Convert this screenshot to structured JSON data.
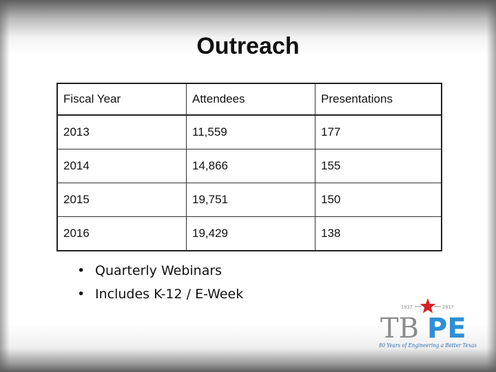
{
  "slide": {
    "title": "Outreach"
  },
  "table": {
    "headers": [
      "Fiscal Year",
      "Attendees",
      "Presentations"
    ],
    "rows": [
      [
        "2013",
        "11,559",
        "177"
      ],
      [
        "2014",
        "14,866",
        "155"
      ],
      [
        "2015",
        "19,751",
        "150"
      ],
      [
        "2016",
        "19,429",
        "138"
      ]
    ]
  },
  "bullets": [
    "Quarterly Webinars",
    "Includes K-12 / E-Week"
  ],
  "logo": {
    "year_start": "1937",
    "year_end": "2017",
    "wordmark_left": "TB",
    "wordmark_right": "PE",
    "tagline": "80 Years of Engineering a Better Texas",
    "colors": {
      "gray": "#8c8c8c",
      "blue": "#2e8fd6",
      "star": "#d42027",
      "tagline": "#2e6fb0"
    }
  }
}
